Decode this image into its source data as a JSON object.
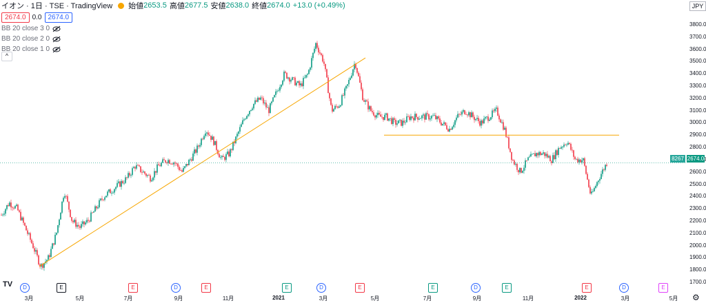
{
  "header": {
    "title": "イオン · 1日 · TSE · TradingView",
    "open_label": "始値",
    "open": "2653.5",
    "high_label": "高値",
    "high": "2677.5",
    "low_label": "安値",
    "low": "2638.0",
    "close_label": "終値",
    "close": "2674.0",
    "change": "+13.0 (+0.49%)",
    "dot_color": "#f7a600"
  },
  "price_row": {
    "bid": "2674.0",
    "spread": "0.0",
    "ask": "2674.0"
  },
  "indicators": [
    {
      "label": "BB 20 close 3 0"
    },
    {
      "label": "BB 20 close 2 0"
    },
    {
      "label": "BB 20 close 1 0"
    }
  ],
  "collapse_label": "^",
  "currency": "JPY",
  "volume_tag": "8267",
  "price_tag": "2674.0",
  "logo": "TV",
  "chart_data": {
    "type": "candlestick",
    "y_ticks": [
      "3800.0",
      "3700.0",
      "3600.0",
      "3500.0",
      "3400.0",
      "3300.0",
      "3200.0",
      "3100.0",
      "3000.0",
      "2900.0",
      "2800.0",
      "2700.0",
      "2600.0",
      "2500.0",
      "2400.0",
      "2300.0",
      "2200.0",
      "2100.0",
      "2000.0",
      "1900.0",
      "1800.0",
      "1700.0"
    ],
    "ylim": [
      1700,
      3800
    ],
    "x_ticks": [
      {
        "label": "3月",
        "bold": false
      },
      {
        "label": "5月",
        "bold": false
      },
      {
        "label": "7月",
        "bold": false
      },
      {
        "label": "9月",
        "bold": false
      },
      {
        "label": "11月",
        "bold": false
      },
      {
        "label": "2021",
        "bold": true
      },
      {
        "label": "3月",
        "bold": false
      },
      {
        "label": "5月",
        "bold": false
      },
      {
        "label": "7月",
        "bold": false
      },
      {
        "label": "9月",
        "bold": false
      },
      {
        "label": "11月",
        "bold": false
      },
      {
        "label": "2022",
        "bold": true
      },
      {
        "label": "3月",
        "bold": false
      },
      {
        "label": "5月",
        "bold": false
      }
    ],
    "price_path": [
      2250,
      2350,
      2300,
      2150,
      2000,
      1830,
      1900,
      2100,
      2450,
      2200,
      2150,
      2200,
      2300,
      2400,
      2450,
      2500,
      2550,
      2650,
      2600,
      2550,
      2650,
      2700,
      2680,
      2600,
      2700,
      2800,
      2950,
      2850,
      2700,
      2750,
      2900,
      3050,
      3150,
      3200,
      3100,
      3250,
      3400,
      3350,
      3300,
      3400,
      3650,
      3500,
      3100,
      3150,
      3300,
      3500,
      3200,
      3100,
      3050,
      3050,
      3000,
      3000,
      3050,
      3050,
      3050,
      3050,
      3000,
      2950,
      3050,
      3100,
      3050,
      3000,
      3050,
      3100,
      2950,
      2700,
      2600,
      2700,
      2750,
      2750,
      2700,
      2800,
      2850,
      2700,
      2700,
      2400,
      2550,
      2674
    ],
    "candle_colors": {
      "up": "#089981",
      "down": "#f23645"
    },
    "trendlines": [
      {
        "from_price": 1830,
        "to_price": 3530,
        "color": "#f7a600"
      },
      {
        "from_price": 2900,
        "to_price": 2900,
        "color": "#f7a600"
      }
    ],
    "last_price_line": 2674
  },
  "events": [
    {
      "type": "D"
    },
    {
      "type": "E",
      "color": "gray"
    },
    {
      "type": "E",
      "color": "red"
    },
    {
      "type": "D"
    },
    {
      "type": "E",
      "color": "red"
    },
    {
      "type": "E",
      "color": "green"
    },
    {
      "type": "D"
    },
    {
      "type": "E",
      "color": "red"
    },
    {
      "type": "E",
      "color": "green"
    },
    {
      "type": "D"
    },
    {
      "type": "E",
      "color": "green"
    },
    {
      "type": "E",
      "color": "red"
    },
    {
      "type": "D"
    },
    {
      "type": "E",
      "color": "pink"
    }
  ]
}
